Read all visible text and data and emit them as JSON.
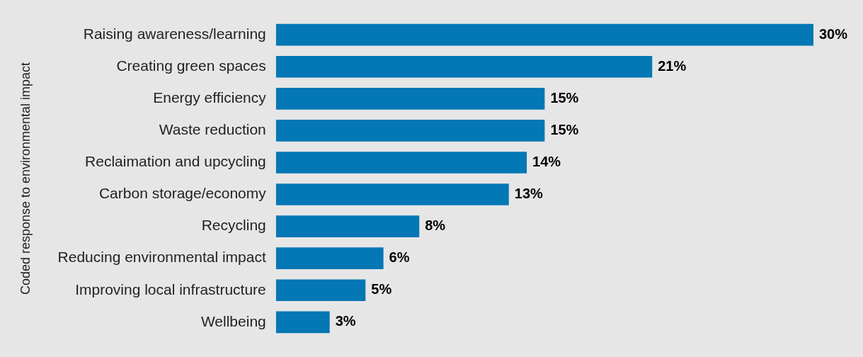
{
  "chart_data": {
    "type": "bar",
    "orientation": "horizontal",
    "ylabel": "Coded response to environmental impact",
    "categories": [
      "Raising awareness/learning",
      "Creating green spaces",
      "Energy efficiency",
      "Waste reduction",
      "Reclaimation and upcycling",
      "Carbon storage/economy",
      "Recycling",
      "Reducing environmental impact",
      "Improving local infrastructure",
      "Wellbeing"
    ],
    "values": [
      30,
      21,
      15,
      15,
      14,
      13,
      8,
      6,
      5,
      3
    ],
    "value_labels": [
      "30%",
      "21%",
      "15%",
      "15%",
      "14%",
      "13%",
      "8%",
      "6%",
      "5%",
      "3%"
    ],
    "color": "#0477b5",
    "grid": false,
    "legend": false,
    "tick_labels": "y"
  }
}
